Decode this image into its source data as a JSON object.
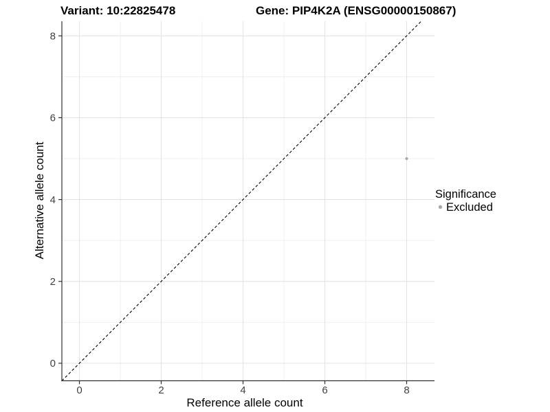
{
  "figure": {
    "title_left": "Variant: 10:22825478",
    "title_right": "Gene: PIP4K2A (ENSG00000150867)"
  },
  "chart_data": {
    "type": "scatter",
    "xlabel": "Reference allele count",
    "ylabel": "Alternative allele count",
    "x_ticks": [
      0,
      2,
      4,
      6,
      8
    ],
    "y_ticks": [
      0,
      2,
      4,
      6,
      8
    ],
    "x_minor": [
      1,
      3,
      5,
      7
    ],
    "y_minor": [
      1,
      3,
      5,
      7
    ],
    "xlim": [
      -0.43,
      8.69
    ],
    "ylim": [
      -0.43,
      8.36
    ],
    "grid": true,
    "points": [
      {
        "x": 8,
        "y": 5,
        "significance": "Excluded"
      }
    ],
    "reference_line": {
      "style": "dashed",
      "slope": 1,
      "intercept": 0
    },
    "legend": {
      "title": "Significance",
      "position": "right",
      "items": [
        {
          "label": "Excluded",
          "marker": "circle",
          "color": "#a8a8a8"
        }
      ]
    },
    "colors": {
      "point": "#a8a8a8",
      "grid_major": "#e3e3e3",
      "grid_minor": "#efefef",
      "axis_line": "#2e2e2e",
      "tick_label": "#404040",
      "title": "#000000",
      "reference_line": "#000000",
      "background": "#ffffff"
    }
  }
}
